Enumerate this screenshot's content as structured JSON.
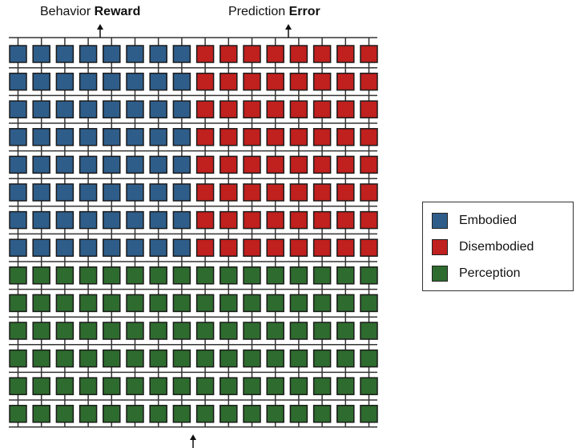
{
  "top_labels": {
    "left_prefix": "Behavior",
    "left_bold": "Reward",
    "right_prefix": "Prediction",
    "right_bold": "Error"
  },
  "grid": {
    "rows": 14,
    "cols": 16,
    "row_groups": [
      {
        "type": "split",
        "count": 8,
        "left_color": "#2e5d8a",
        "right_color": "#c0201e"
      },
      {
        "type": "full",
        "count": 6,
        "color": "#2e6b2e"
      }
    ]
  },
  "legend": {
    "items": [
      {
        "label": "Embodied",
        "color": "#2e5d8a"
      },
      {
        "label": "Disembodied",
        "color": "#c0201e"
      },
      {
        "label": "Perception",
        "color": "#2e6b2e"
      }
    ]
  }
}
